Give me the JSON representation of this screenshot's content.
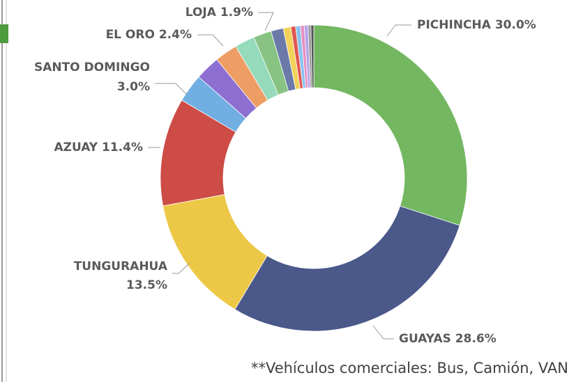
{
  "chart_data": {
    "type": "donut",
    "categories": [
      "PICHINCHA",
      "GUAYAS",
      "TUNGURAHUA",
      "AZUAY",
      "SANTO DOMINGO",
      null,
      "EL ORO",
      null,
      "LOJA",
      null,
      null,
      null,
      null,
      null,
      null,
      null,
      null
    ],
    "values": [
      30.0,
      28.6,
      13.5,
      11.4,
      3.0,
      2.6,
      2.4,
      2.1,
      1.9,
      1.3,
      0.8,
      0.5,
      0.5,
      0.4,
      0.4,
      0.3,
      0.3
    ],
    "value_labels": [
      "30.0%",
      "28.6%",
      "13.5%",
      "11.4%",
      "3.0%",
      null,
      "2.4%",
      null,
      "1.9%",
      null,
      null,
      null,
      null,
      null,
      null,
      null,
      null
    ],
    "colors": [
      "#73b761",
      "#4a588a",
      "#ecc846",
      "#cd4c46",
      "#71afe2",
      "#8d6fd1",
      "#ee9e64",
      "#95dabb",
      "#88c383",
      "#6b7aa8",
      "#f2d25a",
      "#e0574f",
      "#8ac2ee",
      "#e88fc0",
      "#b6a2e8",
      "#9a9a9a",
      "#555555"
    ],
    "annotation": "**Vehículos comerciales: Bus, Camión, VAN"
  }
}
